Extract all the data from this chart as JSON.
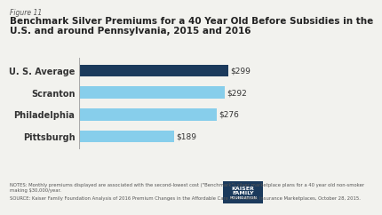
{
  "categories": [
    "U. S. Average",
    "Scranton",
    "Philadelphia",
    "Pittsburgh"
  ],
  "values": [
    299,
    292,
    276,
    189
  ],
  "bar_colors": [
    "#1B3A5C",
    "#87CEEB",
    "#87CEEB",
    "#87CEEB"
  ],
  "value_labels": [
    "$299",
    "$292",
    "$276",
    "$189"
  ],
  "xmax": 320,
  "figure_label": "Figure 11",
  "title_line1": "Benchmark Silver Premiums for a 40 Year Old Before Subsidies in the",
  "title_line2": "U.S. and around Pennsylvania, 2015 and 2016",
  "notes_text": "NOTES: Monthly premiums displayed are associated with the second-lowest cost (\"Benchmark\") silver marketplace plans for a 40 year old non-smoker making $30,000/year.",
  "source_text": "SOURCE: Kaiser Family Foundation Analysis of 2016 Premium Changes in the Affordable Care Act's Health Insurance Marketplaces, October 28, 2015.",
  "bg_color": "#F2F2EE",
  "chart_bg": "#FFFFFF",
  "bar_height": 0.55,
  "label_fontsize": 7.0,
  "value_fontsize": 6.5,
  "title_fontsize": 7.5,
  "fig_label_fontsize": 5.5,
  "notes_fontsize": 3.8
}
